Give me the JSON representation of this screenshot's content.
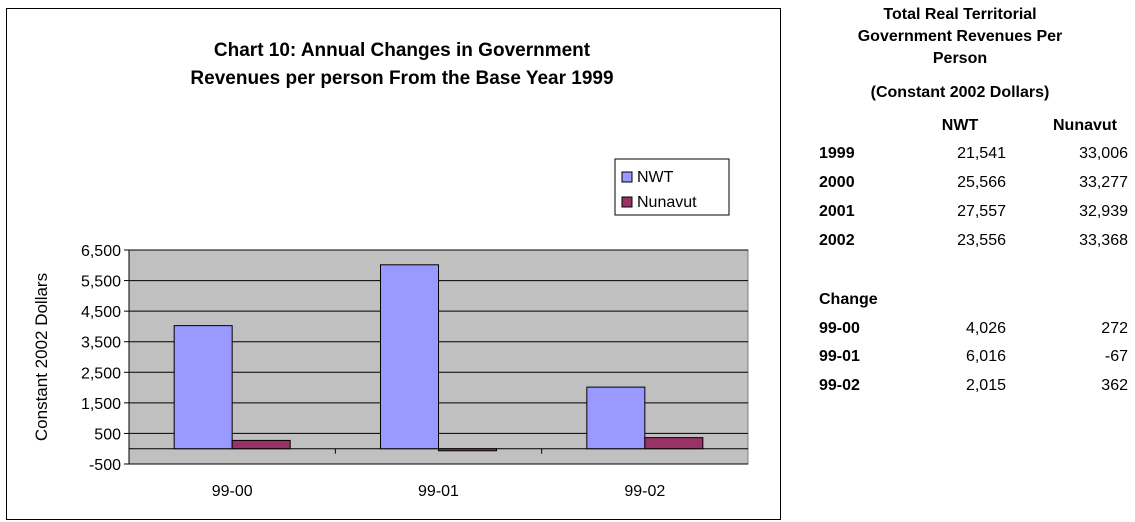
{
  "chart_data": {
    "type": "bar",
    "title_lines": [
      "Chart 10:  Annual Changes in Government",
      "Revenues per person From the Base Year 1999"
    ],
    "ylabel": "Constant 2002 Dollars",
    "xlabel": "",
    "categories": [
      "99-00",
      "99-01",
      "99-02"
    ],
    "yticks": [
      -500,
      500,
      1500,
      2500,
      3500,
      4500,
      5500,
      6500
    ],
    "ytick_labels": [
      "-500",
      "500",
      "1,500",
      "2,500",
      "3,500",
      "4,500",
      "5,500",
      "6,500"
    ],
    "ylim": [
      -500,
      6500
    ],
    "grid": true,
    "legend_position": "top-right",
    "series": [
      {
        "name": "NWT",
        "values": [
          4026,
          6016,
          2015
        ],
        "color": "#9999ff"
      },
      {
        "name": "Nunavut",
        "values": [
          272,
          -67,
          362
        ],
        "color": "#993366"
      }
    ],
    "plot_background": "#c0c0c0"
  },
  "side_table": {
    "title_lines": [
      "Total Real Territorial",
      "Government Revenues Per",
      "Person"
    ],
    "subtitle": "(Constant 2002 Dollars)",
    "col_headers": [
      "NWT",
      "Nunavut"
    ],
    "rows": [
      {
        "label": "1999",
        "nwt": "21,541",
        "nunavut": "33,006"
      },
      {
        "label": "2000",
        "nwt": "25,566",
        "nunavut": "33,277"
      },
      {
        "label": "2001",
        "nwt": "27,557",
        "nunavut": "32,939"
      },
      {
        "label": "2002",
        "nwt": "23,556",
        "nunavut": "33,368"
      }
    ],
    "change_label": "Change",
    "change_rows": [
      {
        "label": "99-00",
        "nwt": "4,026",
        "nunavut": "272"
      },
      {
        "label": "99-01",
        "nwt": "6,016",
        "nunavut": "-67"
      },
      {
        "label": "99-02",
        "nwt": "2,015",
        "nunavut": "362"
      }
    ]
  }
}
